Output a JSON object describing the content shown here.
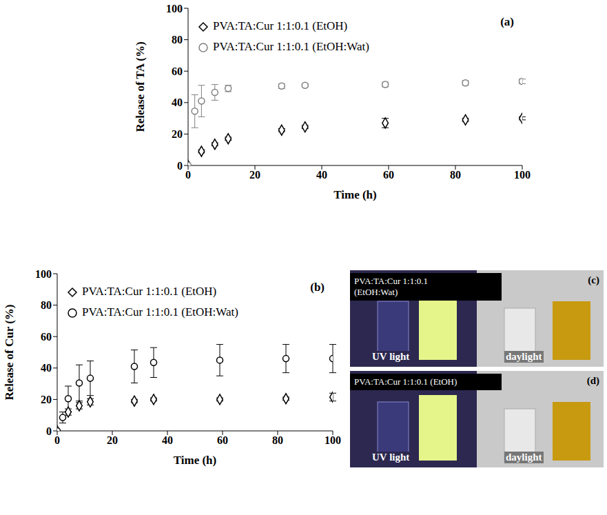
{
  "chart_data": [
    {
      "type": "scatter",
      "panel_label": "(a)",
      "x_label": "Time (h)",
      "y_label": "Release of TA (%)",
      "xlim": [
        0,
        100
      ],
      "xticks": [
        0,
        20,
        40,
        60,
        80,
        100
      ],
      "ylim": [
        0,
        100
      ],
      "yticks": [
        0,
        20,
        40,
        60,
        80,
        100
      ],
      "grid": false,
      "legend": "upper left",
      "series": [
        {
          "name": "PVA:TA:Cur 1:1:0.1 (EtOH)",
          "color": "#000000",
          "marker": "diamond",
          "x": [
            0,
            4,
            8,
            12,
            28,
            35,
            59,
            83,
            100
          ],
          "values": [
            0,
            9,
            13.5,
            17,
            22.5,
            24.5,
            27,
            29,
            30
          ],
          "errors": [
            0,
            1,
            1,
            1,
            1,
            1,
            3,
            1,
            1
          ]
        },
        {
          "name": "PVA:TA:Cur 1:1:0.1 (EtOH:Wat)",
          "color": "#808080",
          "marker": "circle",
          "x": [
            0,
            2,
            4,
            8,
            12,
            28,
            35,
            59,
            83,
            100
          ],
          "values": [
            0,
            34.5,
            41,
            46.5,
            49,
            50.5,
            51,
            51.5,
            52.5,
            53.5
          ],
          "errors": [
            0,
            10.5,
            10,
            5,
            2,
            1.5,
            1,
            1.5,
            1.5,
            1.5
          ]
        }
      ]
    },
    {
      "type": "scatter",
      "panel_label": "(b)",
      "x_label": "Time (h)",
      "y_label": "Release of Cur (%)",
      "xlim": [
        0,
        100
      ],
      "xticks": [
        0,
        20,
        40,
        60,
        80,
        100
      ],
      "ylim": [
        0,
        100
      ],
      "yticks": [
        0,
        20,
        40,
        60,
        80,
        100
      ],
      "grid": false,
      "legend": "upper left",
      "series": [
        {
          "name": "PVA:TA:Cur 1:1:0.1 (EtOH)",
          "color": "#000000",
          "marker": "diamond",
          "x": [
            0,
            4,
            8,
            12,
            28,
            35,
            59,
            83,
            100
          ],
          "values": [
            0,
            12,
            16,
            18.5,
            19,
            20,
            20,
            20.5,
            21.5
          ],
          "errors": [
            0,
            2,
            2,
            2,
            1,
            1,
            1,
            1,
            2.5
          ]
        },
        {
          "name": "PVA:TA:Cur 1:1:0.1 (EtOH:Wat)",
          "color": "#000000",
          "marker": "circle",
          "x": [
            0,
            2,
            4,
            8,
            12,
            28,
            35,
            59,
            83,
            100
          ],
          "values": [
            0,
            8.5,
            20.5,
            30.5,
            33.5,
            41,
            43.5,
            45,
            46,
            46
          ],
          "errors": [
            0,
            3.5,
            8,
            11.5,
            11,
            10.5,
            9.5,
            10,
            9,
            9
          ]
        }
      ]
    }
  ],
  "images": [
    {
      "panel_label": "(c)",
      "sample": "PVA:TA:Cur 1:1:0.1 (EtOH:Wat)",
      "left_text": "UV light",
      "right_text": "daylight"
    },
    {
      "panel_label": "(d)",
      "sample": "PVA:TA:Cur 1:1:0.1 (EtOH)",
      "left_text": "UV light",
      "right_text": "daylight"
    }
  ]
}
